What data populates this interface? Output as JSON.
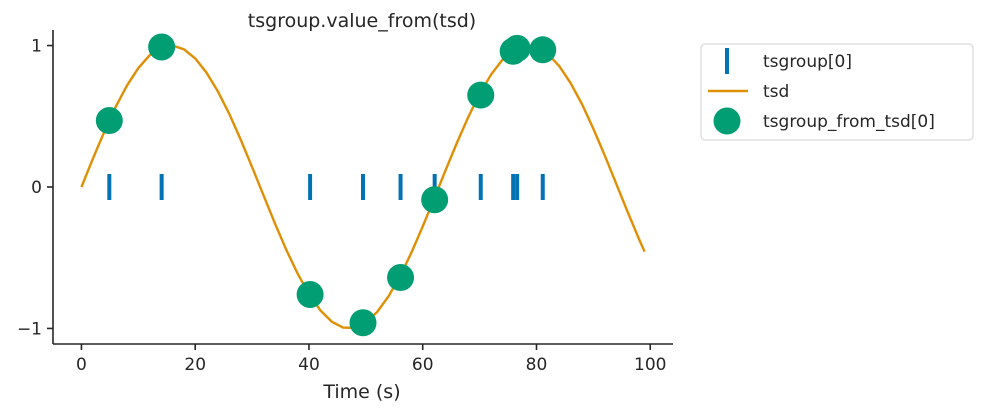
{
  "chart_data": {
    "type": "line",
    "title": "tsgroup.value_from(tsd)",
    "xlabel": "Time (s)",
    "ylabel": "",
    "xlim": [
      -5,
      104
    ],
    "ylim": [
      -1.11,
      1.11
    ],
    "xticks": [
      0,
      20,
      40,
      60,
      80,
      100
    ],
    "xtick_labels": [
      "0",
      "20",
      "40",
      "60",
      "80",
      "100"
    ],
    "yticks": [
      -1,
      0,
      1
    ],
    "ytick_labels": [
      "−1",
      "0",
      "1"
    ],
    "grid": false,
    "legend_position": "outside-right",
    "series": [
      {
        "name": "tsgroup[0]",
        "kind": "event-ticks",
        "color": "#0173b2",
        "x": [
          4.9,
          14.1,
          40.2,
          49.5,
          56.1,
          62.1,
          70.2,
          75.9,
          76.6,
          81.1
        ],
        "y": 0
      },
      {
        "name": "tsd",
        "kind": "line",
        "color": "#de8f05",
        "x": [
          0,
          2,
          4,
          6,
          8,
          10,
          12,
          14,
          16,
          18,
          20,
          22,
          24,
          26,
          28,
          30,
          32,
          34,
          36,
          38,
          40,
          42,
          44,
          46,
          48,
          50,
          52,
          54,
          56,
          58,
          60,
          62,
          64,
          66,
          68,
          70,
          72,
          74,
          76,
          78,
          80,
          82,
          84,
          86,
          88,
          90,
          92,
          94,
          96,
          98,
          99
        ],
        "y": [
          0.0,
          0.199,
          0.389,
          0.565,
          0.717,
          0.841,
          0.932,
          0.985,
          1.0,
          0.974,
          0.909,
          0.808,
          0.675,
          0.516,
          0.335,
          0.141,
          -0.058,
          -0.256,
          -0.443,
          -0.612,
          -0.757,
          -0.872,
          -0.952,
          -0.994,
          -0.996,
          -0.959,
          -0.883,
          -0.772,
          -0.631,
          -0.465,
          -0.279,
          -0.083,
          0.117,
          0.311,
          0.494,
          0.657,
          0.794,
          0.899,
          0.968,
          0.999,
          0.989,
          0.941,
          0.855,
          0.735,
          0.586,
          0.412,
          0.223,
          0.025,
          -0.174,
          -0.366,
          -0.457
        ]
      },
      {
        "name": "tsgroup_from_tsd[0]",
        "kind": "scatter",
        "color": "#029e73",
        "x": [
          4.9,
          14.1,
          40.2,
          49.5,
          56.1,
          62.1,
          70.2,
          75.9,
          76.6,
          81.1
        ],
        "y": [
          0.47,
          0.99,
          -0.76,
          -0.96,
          -0.64,
          -0.09,
          0.65,
          0.96,
          0.98,
          0.97
        ]
      }
    ]
  }
}
